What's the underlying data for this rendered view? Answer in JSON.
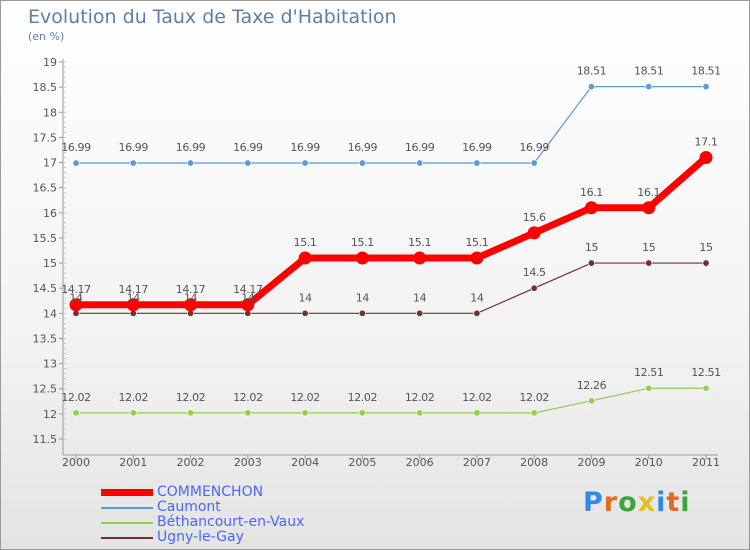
{
  "header": {
    "title": "Evolution du Taux de Taxe d'Habitation",
    "unit": "(en %)"
  },
  "brand": {
    "letters": [
      "P",
      "r",
      "o",
      "x",
      "i",
      "t",
      "i"
    ],
    "colors": [
      "#2e8ae6",
      "#e06b1b",
      "#3aa63a",
      "#e0c11b",
      "#2e8ae6",
      "#e06b1b",
      "#3aa63a"
    ]
  },
  "chart_data": {
    "type": "line",
    "x": [
      "2000",
      "2001",
      "2002",
      "2003",
      "2004",
      "2005",
      "2006",
      "2007",
      "2008",
      "2009",
      "2010",
      "2011"
    ],
    "ylim": [
      11.5,
      19
    ],
    "yticks": [
      "11.5",
      "12",
      "12.5",
      "13",
      "13.5",
      "14",
      "14.5",
      "15",
      "15.5",
      "16",
      "16.5",
      "17",
      "17.5",
      "18",
      "18.5",
      "19"
    ],
    "grid": false,
    "legend_position": "bottom-left",
    "series": [
      {
        "name": "COMMENCHON",
        "color": "#ff0000",
        "emphasis": true,
        "values": [
          14.17,
          14.17,
          14.17,
          14.17,
          15.1,
          15.1,
          15.1,
          15.1,
          15.6,
          16.1,
          16.1,
          17.1
        ],
        "labels": [
          "14.17",
          "14.17",
          "14.17",
          "14.17",
          "15.1",
          "15.1",
          "15.1",
          "15.1",
          "15.6",
          "16.1",
          "16.1",
          "17.1"
        ]
      },
      {
        "name": "Caumont",
        "color": "#5b9bd5",
        "emphasis": false,
        "values": [
          16.99,
          16.99,
          16.99,
          16.99,
          16.99,
          16.99,
          16.99,
          16.99,
          16.99,
          18.51,
          18.51,
          18.51
        ],
        "labels": [
          "16.99",
          "16.99",
          "16.99",
          "16.99",
          "16.99",
          "16.99",
          "16.99",
          "16.99",
          "16.99",
          "18.51",
          "18.51",
          "18.51"
        ]
      },
      {
        "name": "Béthancourt-en-Vaux",
        "color": "#8fd14f",
        "emphasis": false,
        "values": [
          12.02,
          12.02,
          12.02,
          12.02,
          12.02,
          12.02,
          12.02,
          12.02,
          12.02,
          12.26,
          12.51,
          12.51
        ],
        "labels": [
          "12.02",
          "12.02",
          "12.02",
          "12.02",
          "12.02",
          "12.02",
          "12.02",
          "12.02",
          "12.02",
          "12.26",
          "12.51",
          "12.51"
        ]
      },
      {
        "name": "Ugny-le-Gay",
        "color": "#7a2e2e",
        "emphasis": false,
        "values": [
          14,
          14,
          14,
          14,
          14,
          14,
          14,
          14,
          14.5,
          15,
          15,
          15
        ],
        "labels": [
          "14",
          "14",
          "14",
          "14",
          "14",
          "14",
          "14",
          "14",
          "14.5",
          "15",
          "15",
          "15"
        ]
      }
    ]
  }
}
